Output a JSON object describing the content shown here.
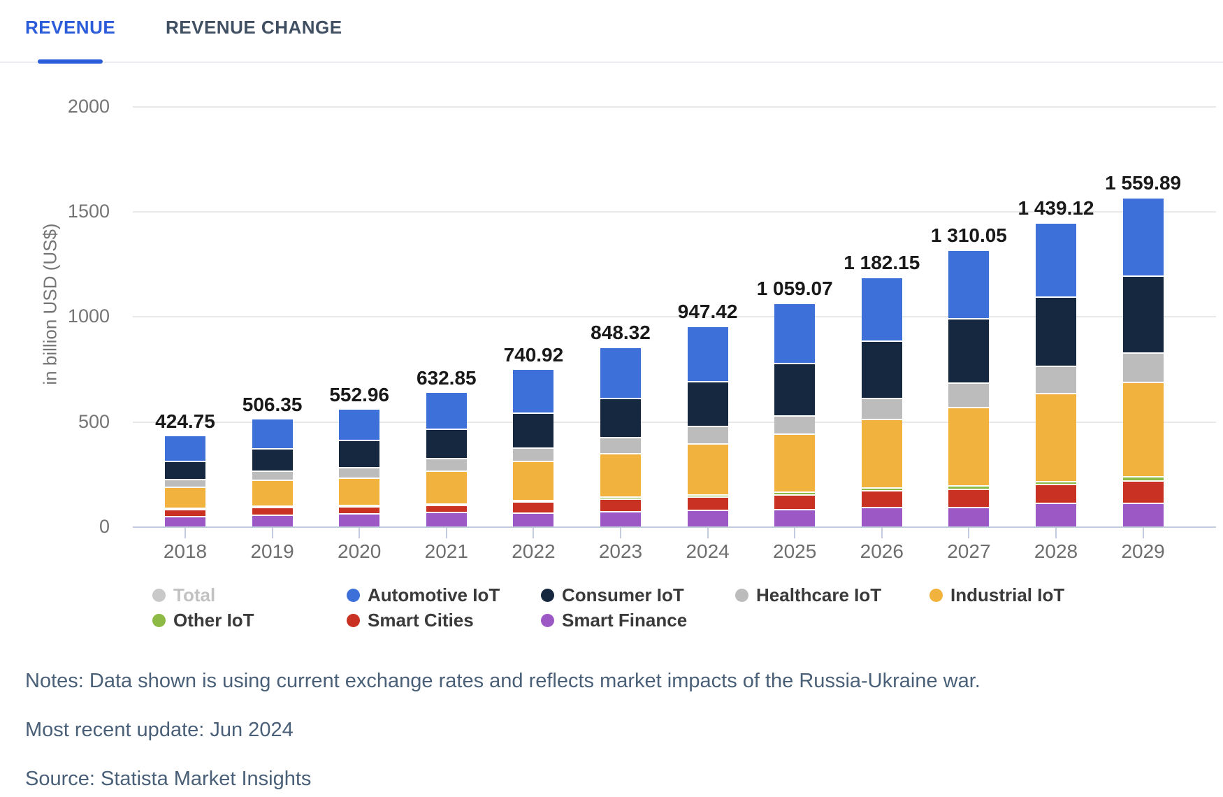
{
  "tabs": {
    "revenue": "REVENUE",
    "revenue_change": "REVENUE CHANGE"
  },
  "chart_data": {
    "type": "bar",
    "stacked": true,
    "title": "",
    "xlabel": "",
    "ylabel": "in billion USD (US$)",
    "ylim": [
      0,
      2000
    ],
    "yticks": [
      0,
      500,
      1000,
      1500,
      2000
    ],
    "grid": "horizontal",
    "legend_position": "bottom",
    "categories": [
      "2018",
      "2019",
      "2020",
      "2021",
      "2022",
      "2023",
      "2024",
      "2025",
      "2026",
      "2027",
      "2028",
      "2029"
    ],
    "totals": [
      424.75,
      506.35,
      552.96,
      632.85,
      740.92,
      848.32,
      947.42,
      1059.07,
      1182.15,
      1310.05,
      1439.12,
      1559.89
    ],
    "total_labels": [
      "424.75",
      "506.35",
      "552.96",
      "632.85",
      "740.92",
      "848.32",
      "947.42",
      "1 059.07",
      "1 182.15",
      "1 310.05",
      "1 439.12",
      "1 559.89"
    ],
    "series": [
      {
        "name": "Smart Finance",
        "color": "#9C59C6",
        "values": [
          42,
          51,
          56,
          62,
          60,
          65,
          74,
          77,
          86,
          88,
          105,
          105
        ]
      },
      {
        "name": "Smart Cities",
        "color": "#C93223",
        "values": [
          33,
          37,
          35,
          35,
          54,
          63,
          63,
          70,
          81,
          84,
          92,
          109
        ]
      },
      {
        "name": "Other IoT",
        "color": "#8CBA45",
        "values": [
          3,
          4,
          4,
          4,
          4,
          9,
          10,
          13,
          12,
          19,
          14,
          19
        ]
      },
      {
        "name": "Industrial IoT",
        "color": "#F2B33E",
        "values": [
          100,
          123,
          128,
          156,
          184,
          207,
          241,
          275,
          327,
          372,
          419,
          449
        ]
      },
      {
        "name": "Healthcare IoT",
        "color": "#BCBCBC",
        "values": [
          37,
          41,
          50,
          58,
          66,
          74,
          83,
          87,
          100,
          115,
          128,
          139
        ]
      },
      {
        "name": "Consumer IoT",
        "color": "#16283F",
        "values": [
          88,
          108,
          130,
          140,
          166,
          189,
          214,
          251,
          272,
          306,
          328,
          365
        ]
      },
      {
        "name": "Automotive IoT",
        "color": "#3D71D9",
        "values": [
          121.75,
          142.35,
          149.96,
          177.85,
          206.92,
          241.32,
          262.42,
          286.07,
          304.15,
          326.05,
          353.12,
          373.89
        ]
      }
    ],
    "legend": [
      {
        "label": "Total",
        "color": "#C9C9C9",
        "muted": true
      },
      {
        "label": "Automotive IoT",
        "color": "#3D71D9",
        "muted": false
      },
      {
        "label": "Consumer IoT",
        "color": "#16283F",
        "muted": false
      },
      {
        "label": "Healthcare IoT",
        "color": "#BCBCBC",
        "muted": false
      },
      {
        "label": "Industrial IoT",
        "color": "#F2B33E",
        "muted": false
      },
      {
        "label": "Other IoT",
        "color": "#8CBA45",
        "muted": false
      },
      {
        "label": "Smart Cities",
        "color": "#C93223",
        "muted": false
      },
      {
        "label": "Smart Finance",
        "color": "#9C59C6",
        "muted": false
      }
    ]
  },
  "styles": {
    "accent": "#2B5CD9",
    "gridline": "#E8E8E8",
    "axis_line": "#C3CCDF",
    "tick_label": "#757575",
    "year_label": "#6E6E6E",
    "total_label": "#191919",
    "notes_text": "#4A6078"
  },
  "notes": {
    "line1": "Notes: Data shown is using current exchange rates and reflects market impacts of the Russia-Ukraine war.",
    "line2": "Most recent update: Jun 2024",
    "line3": "Source: Statista Market Insights"
  }
}
